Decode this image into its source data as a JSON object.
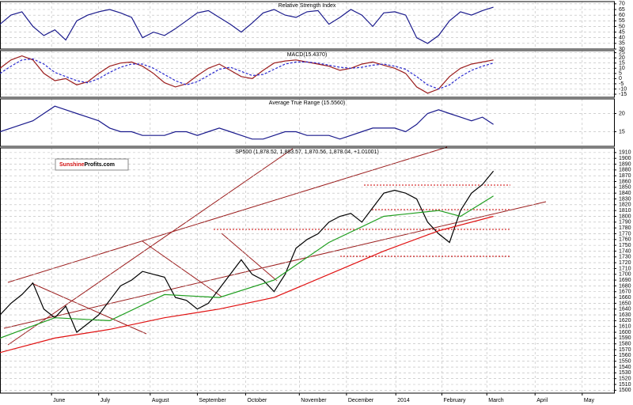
{
  "chart_data": [
    {
      "type": "line",
      "title": "Relative Strength Index",
      "xlim": [
        0,
        56
      ],
      "ylim": [
        30,
        72
      ],
      "yticks": [
        30,
        35,
        40,
        45,
        50,
        55,
        60,
        65,
        70
      ],
      "grid": true,
      "x": [
        0,
        1,
        2,
        3,
        4,
        5,
        6,
        7,
        8,
        9,
        10,
        11,
        12,
        13,
        14,
        15,
        16,
        17,
        18,
        19,
        20,
        21,
        22,
        23,
        24,
        25,
        26,
        27,
        28,
        29,
        30,
        31,
        32,
        33,
        34,
        35,
        36,
        37,
        38,
        39,
        40,
        41,
        42,
        43,
        44,
        45
      ],
      "series": [
        {
          "color": "#1a1a8c",
          "values": [
            52,
            60,
            63,
            50,
            42,
            47,
            38,
            55,
            60,
            63,
            65,
            62,
            58,
            40,
            45,
            42,
            48,
            55,
            62,
            64,
            58,
            52,
            45,
            53,
            62,
            65,
            60,
            58,
            63,
            64,
            52,
            58,
            65,
            60,
            50,
            62,
            63,
            60,
            40,
            35,
            42,
            55,
            63,
            60,
            64,
            67
          ]
        }
      ]
    },
    {
      "type": "line",
      "title": "MACD(15.4370)",
      "xlim": [
        0,
        56
      ],
      "ylim": [
        -18,
        27
      ],
      "yticks": [
        -15,
        -10,
        -5,
        0,
        5,
        10,
        15,
        20,
        25
      ],
      "grid": true,
      "x": [
        0,
        1,
        2,
        3,
        4,
        5,
        6,
        7,
        8,
        9,
        10,
        11,
        12,
        13,
        14,
        15,
        16,
        17,
        18,
        19,
        20,
        21,
        22,
        23,
        24,
        25,
        26,
        27,
        28,
        29,
        30,
        31,
        32,
        33,
        34,
        35,
        36,
        37,
        38,
        39,
        40,
        41,
        42,
        43,
        44,
        45
      ],
      "series": [
        {
          "color": "#9b1c1c",
          "values": [
            10,
            18,
            22,
            18,
            5,
            -2,
            0,
            -6,
            -3,
            5,
            12,
            15,
            16,
            12,
            5,
            -4,
            -8,
            -5,
            3,
            10,
            14,
            8,
            2,
            0,
            8,
            15,
            17,
            18,
            16,
            14,
            12,
            8,
            10,
            14,
            16,
            13,
            10,
            5,
            -8,
            -14,
            -10,
            2,
            10,
            14,
            16,
            18
          ]
        },
        {
          "color": "#2a2ad0",
          "dash": true,
          "values": [
            5,
            12,
            18,
            19,
            14,
            6,
            2,
            -2,
            -4,
            0,
            6,
            11,
            14,
            14,
            10,
            4,
            -2,
            -6,
            -3,
            3,
            9,
            11,
            7,
            3,
            4,
            9,
            14,
            16,
            16,
            15,
            13,
            11,
            10,
            11,
            13,
            14,
            12,
            9,
            2,
            -6,
            -10,
            -6,
            2,
            8,
            12,
            15
          ]
        }
      ]
    },
    {
      "type": "line",
      "title": "Average True Range (15.5560)",
      "xlim": [
        0,
        56
      ],
      "ylim": [
        11,
        24
      ],
      "yticks": [
        15,
        20
      ],
      "grid": true,
      "x": [
        0,
        1,
        2,
        3,
        4,
        5,
        6,
        7,
        8,
        9,
        10,
        11,
        12,
        13,
        14,
        15,
        16,
        17,
        18,
        19,
        20,
        21,
        22,
        23,
        24,
        25,
        26,
        27,
        28,
        29,
        30,
        31,
        32,
        33,
        34,
        35,
        36,
        37,
        38,
        39,
        40,
        41,
        42,
        43,
        44,
        45
      ],
      "series": [
        {
          "color": "#1a1a8c",
          "values": [
            15,
            16,
            17,
            18,
            20,
            22,
            21,
            20,
            19,
            18,
            16,
            15,
            15,
            14,
            14,
            14,
            15,
            15,
            14,
            15,
            16,
            15,
            14,
            13,
            13,
            14,
            15,
            15,
            14,
            14,
            14,
            13,
            14,
            15,
            16,
            16,
            16,
            15,
            17,
            20,
            21,
            20,
            19,
            18,
            19,
            17
          ]
        }
      ]
    },
    {
      "type": "line",
      "title": "SP500 (1,878.52, 1,883.57, 1,870.56, 1,878.04, +1.01001)",
      "logo": [
        "Sunshine",
        "Profits.com"
      ],
      "xlim": [
        0,
        56
      ],
      "ylim": [
        1495,
        1918
      ],
      "grid": true,
      "yticks": [
        1500,
        1510,
        1520,
        1530,
        1540,
        1550,
        1560,
        1570,
        1580,
        1590,
        1600,
        1610,
        1620,
        1630,
        1640,
        1650,
        1660,
        1670,
        1680,
        1690,
        1700,
        1710,
        1720,
        1730,
        1740,
        1750,
        1760,
        1770,
        1780,
        1790,
        1800,
        1810,
        1820,
        1830,
        1840,
        1850,
        1860,
        1870,
        1880,
        1890,
        1900,
        1910
      ],
      "xticks": [
        {
          "value": 4.7,
          "label": "June"
        },
        {
          "value": 9.0,
          "label": "July"
        },
        {
          "value": 13.7,
          "label": "August"
        },
        {
          "value": 18.0,
          "label": "September"
        },
        {
          "value": 22.4,
          "label": "October"
        },
        {
          "value": 27.3,
          "label": "November"
        },
        {
          "value": 31.6,
          "label": "December"
        },
        {
          "value": 36.1,
          "label": "2014"
        },
        {
          "value": 40.3,
          "label": "February"
        },
        {
          "value": 44.4,
          "label": "March"
        },
        {
          "value": 48.8,
          "label": "April"
        },
        {
          "value": 53.1,
          "label": "May"
        }
      ],
      "series": [
        {
          "color": "#000000",
          "x": [
            0,
            1,
            2,
            3,
            4,
            5,
            6,
            7,
            8,
            9,
            10,
            11,
            12,
            13,
            14,
            15,
            16,
            17,
            18,
            19,
            20,
            21,
            22,
            23,
            24,
            25,
            26,
            27,
            28,
            29,
            30,
            31,
            32,
            33,
            34,
            35,
            36,
            37,
            38,
            39,
            40,
            41,
            42,
            43,
            44,
            45
          ],
          "values": [
            1630,
            1650,
            1665,
            1685,
            1640,
            1625,
            1645,
            1600,
            1615,
            1630,
            1655,
            1680,
            1690,
            1705,
            1700,
            1695,
            1660,
            1655,
            1640,
            1650,
            1675,
            1700,
            1725,
            1700,
            1690,
            1670,
            1700,
            1745,
            1760,
            1770,
            1790,
            1800,
            1805,
            1790,
            1815,
            1840,
            1845,
            1840,
            1830,
            1790,
            1770,
            1755,
            1810,
            1840,
            1855,
            1878
          ]
        },
        {
          "color": "#1f9e1f",
          "x": [
            0,
            5,
            10,
            15,
            20,
            25,
            30,
            35,
            40,
            42,
            45
          ],
          "values": [
            1590,
            1625,
            1620,
            1665,
            1660,
            1690,
            1755,
            1800,
            1810,
            1800,
            1835
          ]
        },
        {
          "color": "#e01010",
          "x": [
            0,
            5,
            10,
            15,
            20,
            25,
            30,
            35,
            40,
            45
          ],
          "values": [
            1565,
            1590,
            1605,
            1625,
            1640,
            1660,
            1700,
            1740,
            1775,
            1800
          ]
        }
      ]
    }
  ]
}
